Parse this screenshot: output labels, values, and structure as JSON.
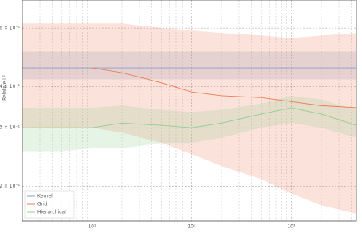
{
  "chart_data": {
    "type": "line",
    "y_label": "Relative L²",
    "x_label": "L",
    "x": [
      2,
      5,
      10,
      20,
      50,
      100,
      200,
      500,
      1000,
      2000,
      4500
    ],
    "xlim": [
      2,
      4500
    ],
    "ylim": [
      0.157,
      0.729
    ],
    "log_x": true,
    "log_y": true,
    "grid": true,
    "minor_grid": true,
    "xticks": [
      {
        "value": 10,
        "label": "10¹"
      },
      {
        "value": 100,
        "label": "10²"
      },
      {
        "value": 1000,
        "label": "10³"
      }
    ],
    "yticks": [
      {
        "value": 0.2,
        "label": "2 × 10⁻¹"
      },
      {
        "value": 0.3,
        "label": "3 × 10⁻¹"
      },
      {
        "value": 0.4,
        "label": "4 × 10⁻¹"
      },
      {
        "value": 0.6,
        "label": "6 × 10⁻¹"
      }
    ],
    "legend": "lower left",
    "series": [
      {
        "name": "Kernel",
        "color": "#8a9ccc",
        "values": [
          0.455,
          0.455,
          0.455,
          0.455,
          0.455,
          0.455,
          0.455,
          0.455,
          0.455,
          0.455,
          0.455
        ],
        "lower": [
          0.42,
          0.42,
          0.42,
          0.42,
          0.42,
          0.42,
          0.42,
          0.42,
          0.42,
          0.42,
          0.42
        ],
        "upper": [
          0.51,
          0.51,
          0.51,
          0.51,
          0.51,
          0.51,
          0.51,
          0.51,
          0.51,
          0.51,
          0.51
        ]
      },
      {
        "name": "Grid",
        "color": "#ee7b55",
        "values": [
          null,
          null,
          0.455,
          0.44,
          0.41,
          0.385,
          0.375,
          0.37,
          0.36,
          0.35,
          0.345
        ],
        "lower": [
          0.3,
          0.3,
          0.3,
          0.29,
          0.27,
          0.25,
          0.23,
          0.21,
          0.19,
          0.175,
          0.165
        ],
        "upper": [
          0.62,
          0.62,
          0.62,
          0.62,
          0.6,
          0.59,
          0.58,
          0.57,
          0.56,
          0.57,
          0.58
        ]
      },
      {
        "name": "Hierarchical",
        "color": "#8fcf8f",
        "values": [
          0.3,
          0.3,
          0.3,
          0.31,
          0.305,
          0.3,
          0.31,
          0.33,
          0.345,
          0.33,
          0.305
        ],
        "lower": [
          0.255,
          0.255,
          0.26,
          0.26,
          0.27,
          0.27,
          0.28,
          0.3,
          0.31,
          0.3,
          0.28
        ],
        "upper": [
          0.345,
          0.345,
          0.345,
          0.35,
          0.34,
          0.335,
          0.34,
          0.355,
          0.375,
          0.365,
          0.34
        ]
      }
    ]
  }
}
